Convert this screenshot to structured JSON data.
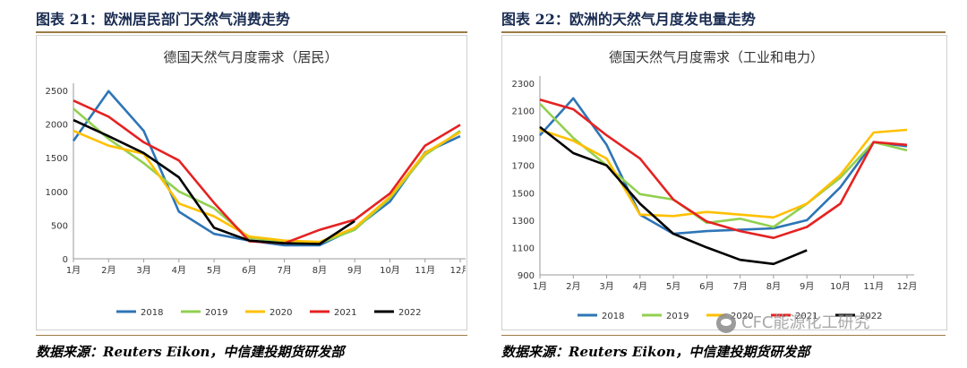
{
  "figures": [
    {
      "label": "图表 21：欧洲居民部门天然气消费走势"
    },
    {
      "label": "图表 22：欧洲的天然气月度发电量走势"
    }
  ],
  "source_text": "数据来源：Reuters Eikon，中信建投期货研发部",
  "watermark": "CFC能源化工研究",
  "chart_data": [
    {
      "type": "line",
      "title": "德国天然气月度需求（居民）",
      "categories": [
        "1月",
        "2月",
        "3月",
        "4月",
        "5月",
        "6月",
        "7月",
        "8月",
        "9月",
        "10月",
        "11月",
        "12月"
      ],
      "ylim": [
        0,
        2500
      ],
      "yticks": [
        0,
        500,
        1000,
        1500,
        2000,
        2500
      ],
      "grid": false,
      "legend": "bottom",
      "series": [
        {
          "name": "2018",
          "color": "#2e75b6",
          "values": [
            1750,
            2490,
            1900,
            700,
            370,
            270,
            200,
            200,
            450,
            850,
            1580,
            1820
          ]
        },
        {
          "name": "2019",
          "color": "#92d050",
          "values": [
            2230,
            1780,
            1420,
            1000,
            750,
            310,
            260,
            230,
            430,
            900,
            1540,
            1900
          ]
        },
        {
          "name": "2020",
          "color": "#ffc000",
          "values": [
            1900,
            1680,
            1560,
            820,
            630,
            330,
            270,
            250,
            460,
            920,
            1570,
            1880
          ]
        },
        {
          "name": "2021",
          "color": "#e52222",
          "values": [
            2350,
            2110,
            1730,
            1460,
            830,
            260,
            230,
            430,
            580,
            970,
            1680,
            1990
          ]
        },
        {
          "name": "2022",
          "color": "#000000",
          "values": [
            2060,
            1820,
            1570,
            1210,
            460,
            270,
            230,
            220,
            560,
            null,
            null,
            null
          ]
        }
      ]
    },
    {
      "type": "line",
      "title": "德国天然气月度需求（工业和电力）",
      "categories": [
        "1月",
        "2月",
        "3月",
        "4月",
        "5月",
        "6月",
        "7月",
        "8月",
        "9月",
        "10月",
        "11月",
        "12月"
      ],
      "ylim": [
        900,
        2300
      ],
      "yticks": [
        900,
        1100,
        1300,
        1500,
        1700,
        1900,
        2100,
        2300
      ],
      "grid": false,
      "legend": "bottom",
      "series": [
        {
          "name": "2018",
          "color": "#2e75b6",
          "values": [
            1920,
            2190,
            1850,
            1340,
            1200,
            1220,
            1230,
            1240,
            1300,
            1540,
            1870,
            1840
          ]
        },
        {
          "name": "2019",
          "color": "#92d050",
          "values": [
            2150,
            1900,
            1700,
            1490,
            1450,
            1280,
            1310,
            1250,
            1420,
            1610,
            1870,
            1810
          ]
        },
        {
          "name": "2020",
          "color": "#ffc000",
          "values": [
            1960,
            1880,
            1750,
            1340,
            1330,
            1360,
            1340,
            1320,
            1420,
            1630,
            1940,
            1960
          ]
        },
        {
          "name": "2021",
          "color": "#e52222",
          "values": [
            2180,
            2110,
            1920,
            1750,
            1450,
            1290,
            1220,
            1170,
            1250,
            1420,
            1870,
            1850
          ]
        },
        {
          "name": "2022",
          "color": "#000000",
          "values": [
            1980,
            1790,
            1700,
            1420,
            1200,
            1100,
            1010,
            980,
            1080,
            null,
            null,
            null
          ]
        }
      ]
    }
  ]
}
